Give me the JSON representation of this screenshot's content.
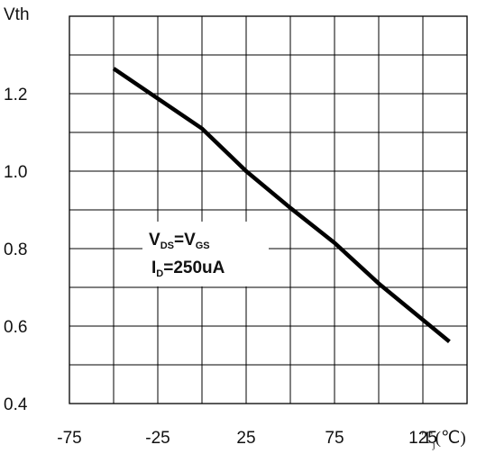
{
  "chart_data": {
    "type": "line",
    "ylabel": "Vth",
    "xlabel": {
      "main": "T",
      "sub": "j",
      "unit": "(℃)"
    },
    "xlim": [
      -75,
      150
    ],
    "ylim": [
      0.4,
      1.4
    ],
    "x_tick_labels": [
      "-75",
      "-25",
      "25",
      "75",
      "125"
    ],
    "y_tick_labels": [
      "0.4",
      "0.6",
      "0.8",
      "1.0",
      "1.2"
    ],
    "x_tick_values": [
      -75,
      -25,
      25,
      75,
      125
    ],
    "y_tick_values": [
      0.4,
      0.6,
      0.8,
      1.0,
      1.2
    ],
    "grid": true,
    "series": [
      {
        "x": [
          -50,
          0,
          25,
          50,
          75,
          100,
          140
        ],
        "y": [
          1.265,
          1.11,
          1.0,
          0.905,
          0.815,
          0.71,
          0.56
        ]
      }
    ],
    "annotation": {
      "line1": {
        "a": "V",
        "a_sub": "DS",
        "eq": "=V",
        "b_sub": "GS"
      },
      "line2": {
        "a": "I",
        "a_sub": "D",
        "rest": "=250uA"
      }
    }
  }
}
